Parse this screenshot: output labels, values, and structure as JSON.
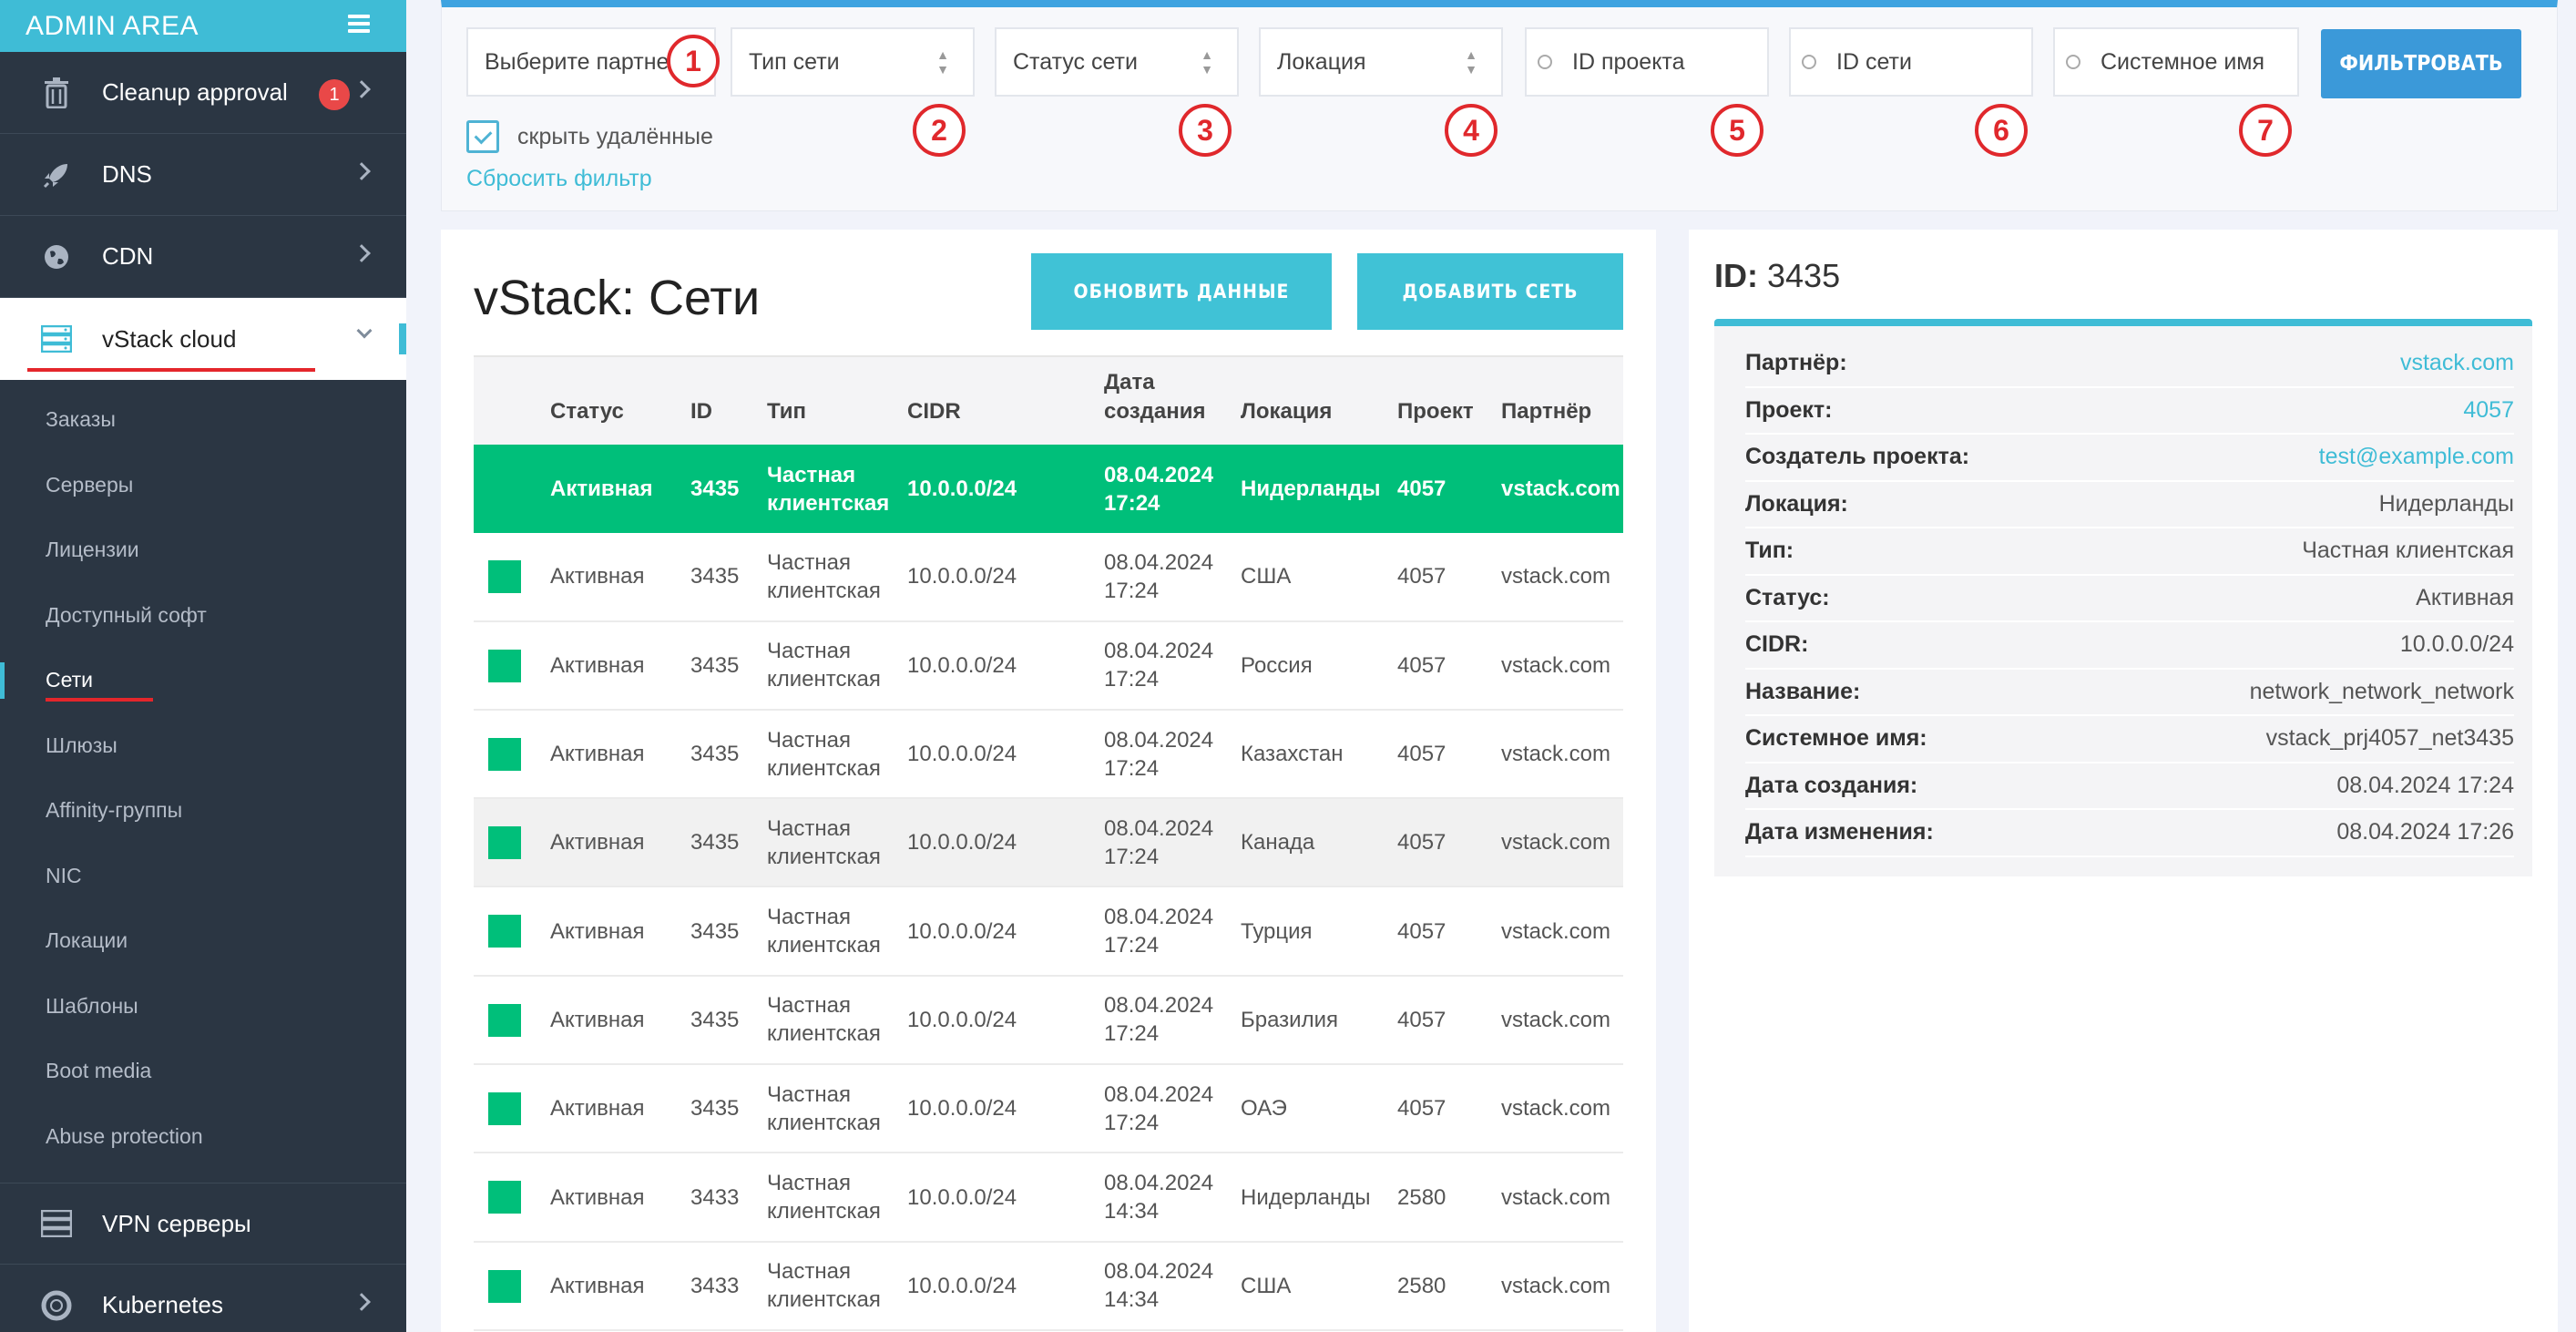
{
  "sidebar": {
    "brand": "ADMIN AREA",
    "top_items": [
      {
        "label": "Cleanup approval",
        "badge": "1"
      },
      {
        "label": "DNS"
      },
      {
        "label": "CDN"
      },
      {
        "label": "vStack cloud"
      }
    ],
    "sub_items": [
      "Заказы",
      "Серверы",
      "Лицензии",
      "Доступный софт",
      "Сети",
      "Шлюзы",
      "Affinity-группы",
      "NIC",
      "Локации",
      "Шаблоны",
      "Boot media",
      "Abuse protection"
    ],
    "bottom_items": [
      {
        "label": "VPN серверы"
      },
      {
        "label": "Kubernetes"
      }
    ]
  },
  "filters": {
    "partner": "Выберите партнера",
    "net_type": "Тип сети",
    "net_status": "Статус сети",
    "location": "Локация",
    "project_id": "ID проекта",
    "net_id": "ID сети",
    "system_name": "Системное имя",
    "filter_button": "ФИЛЬТРОВАТЬ",
    "hide_deleted": "скрыть удалённые",
    "reset": "Сбросить фильтр",
    "markers": [
      "1",
      "2",
      "3",
      "4",
      "5",
      "6",
      "7"
    ]
  },
  "main": {
    "title": "vStack: Сети",
    "refresh_button": "ОБНОВИТЬ ДАННЫЕ",
    "add_button": "ДОБАВИТЬ СЕТЬ",
    "columns": {
      "status": "Статус",
      "id": "ID",
      "type": "Тип",
      "cidr": "CIDR",
      "created": "Дата создания",
      "location": "Локация",
      "project": "Проект",
      "partner": "Партнёр"
    },
    "rows": [
      {
        "status": "Активная",
        "id": "3435",
        "type": "Частная клиентская",
        "cidr": "10.0.0.0/24",
        "created": "08.04.2024 17:24",
        "location": "Нидерланды",
        "project": "4057",
        "partner": "vstack.com"
      },
      {
        "status": "Активная",
        "id": "3435",
        "type": "Частная клиентская",
        "cidr": "10.0.0.0/24",
        "created": "08.04.2024 17:24",
        "location": "США",
        "project": "4057",
        "partner": "vstack.com"
      },
      {
        "status": "Активная",
        "id": "3435",
        "type": "Частная клиентская",
        "cidr": "10.0.0.0/24",
        "created": "08.04.2024 17:24",
        "location": "Россия",
        "project": "4057",
        "partner": "vstack.com"
      },
      {
        "status": "Активная",
        "id": "3435",
        "type": "Частная клиентская",
        "cidr": "10.0.0.0/24",
        "created": "08.04.2024 17:24",
        "location": "Казахстан",
        "project": "4057",
        "partner": "vstack.com"
      },
      {
        "status": "Активная",
        "id": "3435",
        "type": "Частная клиентская",
        "cidr": "10.0.0.0/24",
        "created": "08.04.2024 17:24",
        "location": "Канада",
        "project": "4057",
        "partner": "vstack.com"
      },
      {
        "status": "Активная",
        "id": "3435",
        "type": "Частная клиентская",
        "cidr": "10.0.0.0/24",
        "created": "08.04.2024 17:24",
        "location": "Турция",
        "project": "4057",
        "partner": "vstack.com"
      },
      {
        "status": "Активная",
        "id": "3435",
        "type": "Частная клиентская",
        "cidr": "10.0.0.0/24",
        "created": "08.04.2024 17:24",
        "location": "Бразилия",
        "project": "4057",
        "partner": "vstack.com"
      },
      {
        "status": "Активная",
        "id": "3435",
        "type": "Частная клиентская",
        "cidr": "10.0.0.0/24",
        "created": "08.04.2024 17:24",
        "location": "ОАЭ",
        "project": "4057",
        "partner": "vstack.com"
      },
      {
        "status": "Активная",
        "id": "3433",
        "type": "Частная клиентская",
        "cidr": "10.0.0.0/24",
        "created": "08.04.2024 14:34",
        "location": "Нидерланды",
        "project": "2580",
        "partner": "vstack.com"
      },
      {
        "status": "Активная",
        "id": "3433",
        "type": "Частная клиентская",
        "cidr": "10.0.0.0/24",
        "created": "08.04.2024 14:34",
        "location": "США",
        "project": "2580",
        "partner": "vstack.com"
      }
    ]
  },
  "detail": {
    "id_label": "ID:",
    "id_value": "3435",
    "fields": [
      {
        "k": "Партнёр:",
        "v": "vstack.com",
        "link": true
      },
      {
        "k": "Проект:",
        "v": "4057",
        "link": true
      },
      {
        "k": "Создатель проекта:",
        "v": "test@example.com",
        "link": true
      },
      {
        "k": "Локация:",
        "v": "Нидерланды"
      },
      {
        "k": "Тип:",
        "v": "Частная клиентская"
      },
      {
        "k": "Статус:",
        "v": "Активная"
      },
      {
        "k": "CIDR:",
        "v": "10.0.0.0/24"
      },
      {
        "k": "Название:",
        "v": "network_network_network"
      },
      {
        "k": "Системное имя:",
        "v": "vstack_prj4057_net3435"
      },
      {
        "k": "Дата создания:",
        "v": "08.04.2024 17:24"
      },
      {
        "k": "Дата изменения:",
        "v": "08.04.2024 17:26"
      }
    ]
  },
  "colors": {
    "accent": "#3fbcd6",
    "sidebar": "#2b3643",
    "active_row": "#00bf7a",
    "filter_button": "#3b99d9",
    "marker": "#e0282c"
  }
}
